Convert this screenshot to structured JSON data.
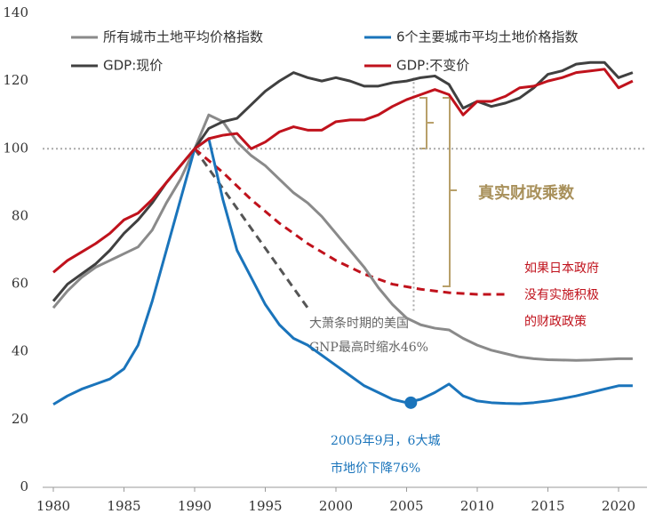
{
  "chart_data": {
    "type": "line",
    "x": [
      1980,
      1981,
      1982,
      1983,
      1984,
      1985,
      1986,
      1987,
      1988,
      1989,
      1990,
      1991,
      1992,
      1993,
      1994,
      1995,
      1996,
      1997,
      1998,
      1999,
      2000,
      2001,
      2002,
      2003,
      2004,
      2005,
      2006,
      2007,
      2008,
      2009,
      2010,
      2011,
      2012,
      2013,
      2014,
      2015,
      2016,
      2017,
      2018,
      2019,
      2020,
      2021
    ],
    "series": [
      {
        "name": "所有城市土地平均价格指数",
        "color": "#8a8a8a",
        "values": [
          53,
          58,
          62,
          65,
          67,
          69,
          71,
          76,
          84,
          91,
          100,
          110,
          108,
          102,
          98,
          95,
          91,
          87,
          84,
          80,
          75,
          70,
          65,
          59,
          54,
          50,
          48,
          47,
          46.5,
          44,
          42,
          40.5,
          39.5,
          38.5,
          38,
          37.7,
          37.6,
          37.5,
          37.6,
          37.8,
          38,
          38
        ]
      },
      {
        "name": "6个主要城市平均土地价格指数",
        "color": "#1a74bb",
        "values": [
          24.5,
          27,
          29,
          30.5,
          32,
          35,
          42,
          55,
          70,
          85,
          100,
          103,
          85,
          70,
          62,
          54,
          48,
          44,
          42,
          39,
          36,
          33,
          30,
          28,
          26,
          25,
          26,
          28,
          30.5,
          27,
          25.5,
          25,
          24.8,
          24.7,
          25,
          25.5,
          26.2,
          27,
          28,
          29,
          30,
          30
        ]
      },
      {
        "name": "GDP:现价",
        "color": "#404040",
        "values": [
          55,
          60,
          63,
          66,
          70,
          75,
          79,
          84,
          90,
          95,
          100,
          106,
          108,
          109,
          113,
          117,
          120,
          122.5,
          121,
          120,
          121,
          120,
          118.5,
          118.5,
          119.5,
          120,
          121,
          121.5,
          119,
          112,
          114,
          112.5,
          113.5,
          115,
          118,
          122,
          123,
          125,
          125.5,
          125.5,
          121,
          122.5
        ]
      },
      {
        "name": "GDP:不变价",
        "color": "#c0121c",
        "values": [
          63.5,
          67,
          69.5,
          72,
          75,
          79,
          81,
          85,
          90,
          95,
          100,
          103,
          104,
          104.5,
          100,
          102,
          105,
          106.5,
          105.5,
          105.5,
          108,
          108.5,
          108.5,
          110,
          112.5,
          114.5,
          116,
          117.5,
          116,
          110,
          114,
          114,
          115.5,
          118,
          118.5,
          120,
          121,
          122.5,
          123,
          123.5,
          118,
          120
        ]
      }
    ],
    "dashed": [
      {
        "color": "#555555",
        "x": [
          1990,
          1998
        ],
        "values": [
          100,
          53
        ]
      },
      {
        "color": "#c0121c",
        "x": [
          1990,
          1992,
          1994,
          1996,
          1998,
          2000,
          2002,
          2004,
          2006,
          2008,
          2010,
          2012
        ],
        "values": [
          100,
          93,
          85,
          78,
          72,
          67,
          63,
          60,
          58.5,
          57.5,
          57,
          57
        ]
      }
    ],
    "hline": 100,
    "vline": 2005.5,
    "highlight": {
      "x": 2005.3,
      "y": 25
    },
    "xlim": [
      1980,
      2022.5
    ],
    "ylim": [
      0,
      140
    ],
    "xticks": [
      1980,
      1985,
      1990,
      1995,
      2000,
      2005,
      2010,
      2015,
      2020
    ],
    "yticks": [
      0,
      20,
      40,
      60,
      80,
      100,
      120,
      140
    ],
    "annotations": {
      "us": [
        "大萧条时期的美国",
        "GNP最高时缩水46%"
      ],
      "tokyo": [
        "2005年9月，6大城",
        "市地价下降76%"
      ],
      "multiplier": "真实财政乘数",
      "counterfactual": [
        "如果日本政府",
        "没有实施积极",
        "的财政政策"
      ]
    }
  }
}
